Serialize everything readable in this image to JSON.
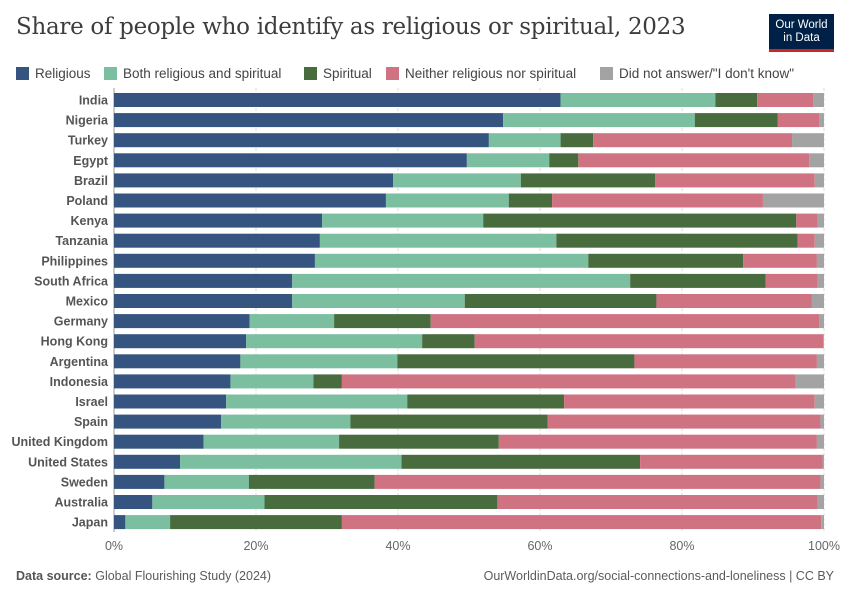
{
  "title": "Share of people who identify as religious or spiritual, 2023",
  "logo": {
    "line1": "Our World",
    "line2": "in Data"
  },
  "footer": {
    "source_label": "Data source:",
    "source": "Global Flourishing Study (2024)",
    "url_license": "OurWorldinData.org/social-connections-and-loneliness | CC BY"
  },
  "chart_data": {
    "type": "bar",
    "orientation": "horizontal",
    "stacked": true,
    "title": "Share of people who identify as religious or spiritual, 2023",
    "xlim": [
      0,
      100
    ],
    "x_ticks": [
      "0%",
      "20%",
      "40%",
      "60%",
      "80%",
      "100%"
    ],
    "grid": true,
    "legend_position": "top",
    "categories": [
      "India",
      "Nigeria",
      "Turkey",
      "Egypt",
      "Brazil",
      "Poland",
      "Kenya",
      "Tanzania",
      "Philippines",
      "South Africa",
      "Mexico",
      "Germany",
      "Hong Kong",
      "Argentina",
      "Indonesia",
      "Israel",
      "Spain",
      "United Kingdom",
      "United States",
      "Sweden",
      "Australia",
      "Japan"
    ],
    "series": [
      {
        "name": "Religious",
        "color": "#355480",
        "values": [
          62.9,
          54.8,
          52.8,
          49.7,
          39.3,
          38.3,
          29.3,
          29.0,
          28.3,
          25.1,
          25.1,
          19.1,
          18.6,
          17.8,
          16.4,
          15.8,
          15.1,
          12.6,
          9.3,
          7.1,
          5.4,
          1.6
        ]
      },
      {
        "name": "Both religious and spiritual",
        "color": "#7bbea0",
        "values": [
          21.8,
          27.0,
          10.1,
          11.6,
          18.0,
          17.3,
          22.7,
          33.3,
          38.5,
          47.6,
          24.3,
          11.9,
          24.8,
          22.1,
          11.7,
          25.5,
          18.2,
          19.1,
          31.2,
          11.9,
          15.8,
          6.3
        ]
      },
      {
        "name": "Spiritual",
        "color": "#486c3e",
        "values": [
          5.9,
          11.7,
          4.6,
          4.1,
          18.9,
          6.1,
          44.1,
          34.0,
          21.8,
          19.1,
          27.0,
          13.6,
          7.4,
          33.4,
          4.0,
          22.1,
          27.8,
          22.5,
          33.6,
          17.7,
          32.8,
          24.2
        ]
      },
      {
        "name": "Neither religious nor spiritual",
        "color": "#cf7382",
        "values": [
          7.9,
          5.8,
          28.0,
          32.5,
          22.5,
          29.7,
          3.0,
          2.4,
          10.4,
          7.3,
          21.9,
          54.7,
          49.1,
          25.7,
          63.9,
          35.3,
          38.4,
          44.8,
          25.7,
          62.8,
          45.1,
          67.5
        ]
      },
      {
        "name": "Did not answer/\"I don't know\"",
        "color": "#a3a3a3",
        "values": [
          1.5,
          0.7,
          4.5,
          2.1,
          1.3,
          8.6,
          0.9,
          1.3,
          1.0,
          0.9,
          1.7,
          0.7,
          0.1,
          1.0,
          4.0,
          1.3,
          0.5,
          1.0,
          0.2,
          0.5,
          0.9,
          0.4
        ]
      }
    ]
  }
}
